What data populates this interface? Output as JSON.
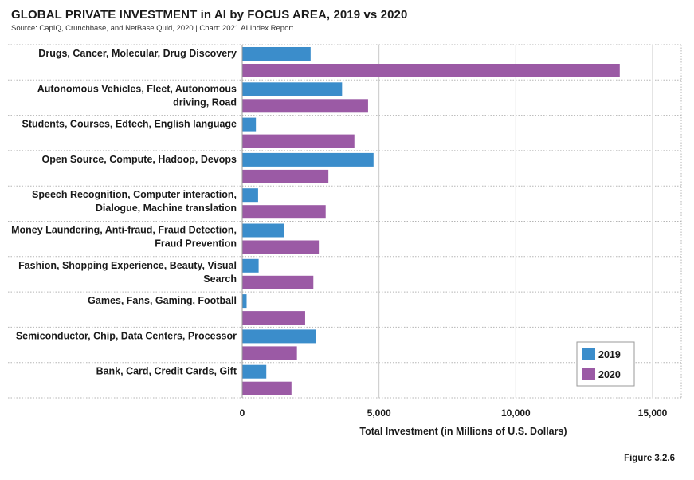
{
  "header": {
    "title": "GLOBAL PRIVATE INVESTMENT in AI by FOCUS AREA, 2019 vs 2020",
    "subtitle": "Source: CapIQ, Crunchbase, and NetBase Quid, 2020 | Chart: 2021 AI Index Report"
  },
  "footer": {
    "figure_label": "Figure 3.2.6"
  },
  "chart_data": {
    "type": "bar",
    "orientation": "horizontal",
    "categories": [
      [
        "Drugs, Cancer, Molecular, Drug Discovery"
      ],
      [
        "Autonomous Vehicles, Fleet, Autonomous",
        "driving, Road"
      ],
      [
        "Students, Courses, Edtech, English language"
      ],
      [
        "Open Source, Compute, Hadoop, Devops"
      ],
      [
        "Speech Recognition, Computer interaction,",
        "Dialogue, Machine translation"
      ],
      [
        "Money Laundering, Anti-fraud, Fraud Detection,",
        "Fraud Prevention"
      ],
      [
        "Fashion, Shopping Experience, Beauty, Visual",
        "Search"
      ],
      [
        "Games, Fans, Gaming, Football"
      ],
      [
        "Semiconductor, Chip, Data Centers, Processor"
      ],
      [
        "Bank, Card, Credit Cards, Gift"
      ]
    ],
    "series": [
      {
        "name": "2019",
        "color": "#3b8dcb",
        "values": [
          2500,
          3650,
          500,
          4800,
          580,
          1530,
          600,
          160,
          2700,
          880
        ]
      },
      {
        "name": "2020",
        "color": "#9b5aa5",
        "values": [
          13800,
          4600,
          4100,
          3150,
          3050,
          2800,
          2600,
          2300,
          2000,
          1800
        ]
      }
    ],
    "xlabel": "Total Investment (in Millions of U.S. Dollars)",
    "ylabel": "",
    "xlim": [
      0,
      15000
    ],
    "xticks": [
      0,
      5000,
      10000,
      15000
    ],
    "xtick_labels": [
      "0",
      "5,000",
      "10,000",
      "15,000"
    ],
    "grid": true,
    "legend_position": "bottom-right"
  }
}
